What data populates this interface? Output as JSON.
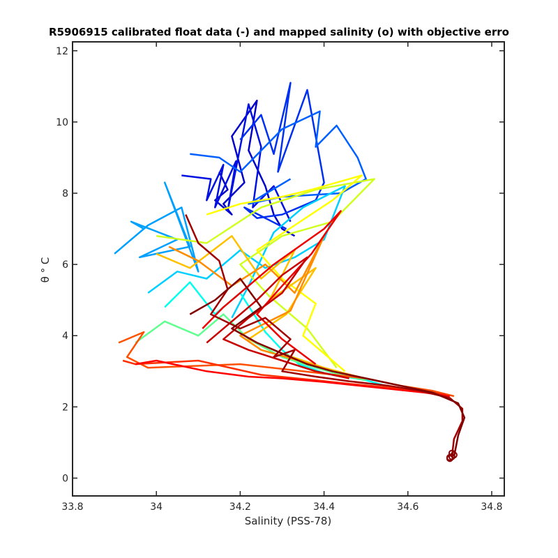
{
  "chart_data": {
    "type": "line",
    "title": "R5906915 calibrated float data (-) and mapped salinity (o) with objective erro",
    "xlabel": "Salinity (PSS-78)",
    "ylabel": "θ ° C",
    "xlim": [
      33.8,
      34.83
    ],
    "ylim": [
      -0.5,
      12.25
    ],
    "x_ticks": [
      "33.8",
      "34",
      "34.2",
      "34.4",
      "34.6",
      "34.8"
    ],
    "y_ticks": [
      "0",
      "2",
      "4",
      "6",
      "8",
      "10",
      "12"
    ],
    "grid": false,
    "legend": "none",
    "colormap": "jet",
    "series": [
      {
        "color": "#0000c8",
        "x": [
          34.15,
          34.17,
          34.14,
          34.18,
          34.16,
          34.21,
          34.18,
          34.24,
          34.22,
          34.26,
          34.28,
          34.3,
          34.33
        ],
        "y": [
          8.6,
          8.1,
          7.8,
          7.4,
          7.7,
          8.3,
          9.6,
          10.6,
          9.2,
          8.2,
          7.4,
          7.0,
          6.8
        ]
      },
      {
        "color": "#0010e0",
        "x": [
          34.06,
          34.13,
          34.12,
          34.16,
          34.14,
          34.19,
          34.17,
          34.22,
          34.25,
          34.23,
          34.28,
          34.32
        ],
        "y": [
          8.5,
          8.4,
          7.8,
          8.8,
          7.6,
          8.9,
          7.5,
          10.5,
          9.3,
          7.6,
          8.2,
          7.2
        ]
      },
      {
        "color": "#0030f0",
        "x": [
          34.2,
          34.25,
          34.28,
          34.32,
          34.29,
          34.36,
          34.4,
          34.38,
          34.3,
          34.24,
          34.21,
          34.31
        ],
        "y": [
          9.5,
          10.2,
          9.1,
          11.1,
          8.6,
          10.9,
          8.3,
          7.8,
          7.4,
          7.3,
          7.6,
          7.0
        ]
      },
      {
        "color": "#0060ff",
        "x": [
          34.08,
          34.15,
          34.2,
          34.3,
          34.39,
          34.38,
          34.43,
          34.48,
          34.5,
          34.44,
          34.3,
          34.22,
          34.32
        ],
        "y": [
          9.1,
          9.0,
          8.6,
          9.8,
          10.3,
          9.3,
          9.9,
          9.0,
          8.4,
          8.0,
          7.9,
          7.7,
          8.4
        ]
      },
      {
        "color": "#00a0ff",
        "x": [
          33.9,
          33.97,
          33.94,
          34.05,
          33.96,
          34.08,
          34.02,
          34.1,
          34.06,
          33.98,
          33.92
        ],
        "y": [
          6.3,
          7.0,
          7.2,
          6.7,
          6.2,
          6.5,
          8.3,
          5.8,
          7.6,
          7.1,
          6.5
        ]
      },
      {
        "color": "#00d0ff",
        "x": [
          33.98,
          34.05,
          34.12,
          34.2,
          34.26,
          34.33,
          34.4,
          34.45,
          34.35,
          34.28,
          34.22,
          34.18
        ],
        "y": [
          5.2,
          5.8,
          5.6,
          6.4,
          5.9,
          6.2,
          6.7,
          8.2,
          7.6,
          6.9,
          5.4,
          4.5
        ]
      },
      {
        "color": "#00ffee",
        "x": [
          34.02,
          34.08,
          34.14,
          34.2,
          34.26,
          34.3,
          34.34,
          34.4,
          34.5,
          34.56,
          34.6
        ],
        "y": [
          4.8,
          5.5,
          4.6,
          5.2,
          4.1,
          3.6,
          3.2,
          2.95,
          2.75,
          2.55,
          2.45
        ]
      },
      {
        "color": "#60ff90",
        "x": [
          33.95,
          34.02,
          34.1,
          34.16,
          34.22,
          34.3,
          34.38,
          34.44,
          34.5
        ],
        "y": [
          3.8,
          4.4,
          4.0,
          4.6,
          3.9,
          3.4,
          3.1,
          2.9,
          2.75
        ]
      },
      {
        "color": "#d0ff20",
        "x": [
          34.0,
          34.12,
          34.25,
          34.38,
          34.52,
          34.42,
          34.3,
          34.2,
          34.27,
          34.36,
          34.43
        ],
        "y": [
          6.8,
          6.6,
          7.6,
          8.1,
          8.4,
          7.2,
          6.8,
          6.0,
          5.1,
          4.2,
          3.1
        ]
      },
      {
        "color": "#ffff00",
        "x": [
          34.12,
          34.2,
          34.3,
          34.37,
          34.49,
          34.42,
          34.33,
          34.24,
          34.3,
          34.38,
          34.35,
          34.45
        ],
        "y": [
          7.4,
          7.7,
          7.9,
          8.1,
          8.5,
          7.8,
          7.1,
          6.4,
          5.6,
          4.9,
          4.0,
          3.0
        ]
      },
      {
        "color": "#ffc000",
        "x": [
          34.0,
          34.08,
          34.18,
          34.25,
          34.33,
          34.27,
          34.38,
          34.31,
          34.22,
          34.3,
          34.4,
          34.48
        ],
        "y": [
          6.3,
          5.9,
          6.8,
          5.6,
          6.4,
          5.0,
          5.9,
          4.6,
          3.9,
          3.5,
          3.1,
          2.85
        ]
      },
      {
        "color": "#ff8c00",
        "x": [
          34.03,
          34.1,
          34.18,
          34.26,
          34.33,
          34.4,
          34.32,
          34.2,
          34.25,
          34.34,
          34.42,
          34.5
        ],
        "y": [
          6.5,
          6.1,
          5.4,
          6.0,
          5.2,
          6.8,
          4.7,
          4.0,
          3.6,
          3.3,
          3.0,
          2.8
        ]
      },
      {
        "color": "#ff5000",
        "x": [
          33.91,
          33.97,
          33.93,
          33.98,
          34.2,
          34.35,
          34.5,
          34.58,
          34.66,
          34.71
        ],
        "y": [
          3.8,
          4.1,
          3.4,
          3.1,
          3.2,
          3.0,
          2.8,
          2.6,
          2.45,
          2.3
        ]
      },
      {
        "color": "#ff3000",
        "x": [
          33.92,
          33.95,
          34.1,
          34.25,
          34.38,
          34.46,
          34.55,
          34.63,
          34.69
        ],
        "y": [
          3.3,
          3.2,
          3.3,
          2.9,
          2.75,
          2.65,
          2.55,
          2.45,
          2.35
        ]
      },
      {
        "color": "#ff0000",
        "x": [
          33.95,
          34.0,
          34.12,
          34.22,
          34.3,
          34.4,
          34.48,
          34.56,
          34.64,
          34.7
        ],
        "y": [
          3.2,
          3.3,
          3.0,
          2.85,
          2.8,
          2.7,
          2.6,
          2.5,
          2.4,
          2.3
        ]
      },
      {
        "color": "#ee0000",
        "x": [
          34.11,
          34.16,
          34.22,
          34.28,
          34.34,
          34.4,
          34.44,
          34.37,
          34.3,
          34.24,
          34.3,
          34.38
        ],
        "y": [
          4.2,
          4.8,
          5.4,
          6.0,
          6.5,
          7.0,
          7.5,
          6.3,
          5.4,
          4.6,
          3.9,
          3.2
        ]
      },
      {
        "color": "#c80000",
        "x": [
          34.12,
          34.18,
          34.24,
          34.3,
          34.36,
          34.3,
          34.22,
          34.16,
          34.22,
          34.3,
          34.38,
          34.46
        ],
        "y": [
          3.8,
          4.4,
          5.0,
          5.7,
          6.2,
          5.2,
          4.5,
          3.9,
          3.6,
          3.3,
          3.0,
          2.8
        ]
      },
      {
        "color": "#a00000",
        "x": [
          34.07,
          34.1,
          34.15,
          34.17,
          34.13,
          34.2,
          34.26,
          34.32,
          34.28,
          34.33,
          34.3,
          34.38,
          34.46,
          34.55,
          34.63,
          34.7,
          34.73,
          34.73,
          34.71,
          34.705
        ],
        "y": [
          7.4,
          6.6,
          6.1,
          5.3,
          4.6,
          4.2,
          4.5,
          3.9,
          3.4,
          3.6,
          3.0,
          2.85,
          2.72,
          2.6,
          2.45,
          2.25,
          1.95,
          1.6,
          1.1,
          0.6
        ]
      },
      {
        "color": "#800000",
        "x": [
          34.08,
          34.14,
          34.2,
          34.25,
          34.18,
          34.24,
          34.3,
          34.36,
          34.42,
          34.5,
          34.58,
          34.66,
          34.72,
          34.735,
          34.72,
          34.71
        ],
        "y": [
          4.6,
          5.0,
          5.6,
          4.8,
          4.2,
          3.8,
          3.5,
          3.2,
          3.0,
          2.8,
          2.6,
          2.4,
          2.1,
          1.7,
          1.2,
          0.6
        ]
      }
    ],
    "mapped_points": {
      "color": "#8b0000",
      "x": [
        34.7,
        34.705,
        34.71,
        34.705,
        34.7
      ],
      "y": [
        0.55,
        0.6,
        0.65,
        0.7,
        0.58
      ]
    }
  }
}
